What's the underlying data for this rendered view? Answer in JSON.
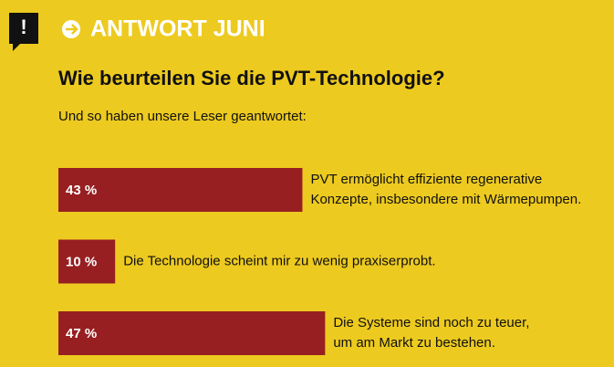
{
  "chart_data": {
    "type": "bar",
    "orientation": "horizontal",
    "header": "ANTWORT JUNI",
    "title": "Wie beurteilen Sie die PVT-Technologie?",
    "subtitle": "Und so haben unsere Leser geantwortet:",
    "categories": [
      [
        "PVT ermöglicht effiziente regenerative",
        "Konzepte, insbesondere mit Wärmepumpen."
      ],
      [
        "Die Technologie scheint mir zu wenig praxiserprobt."
      ],
      [
        "Die Systeme sind noch zu teuer,",
        "um am Markt zu bestehen."
      ]
    ],
    "values": [
      43,
      10,
      47
    ],
    "value_labels": [
      "43 %",
      "10 %",
      "47 %"
    ],
    "color": "#971f21"
  }
}
